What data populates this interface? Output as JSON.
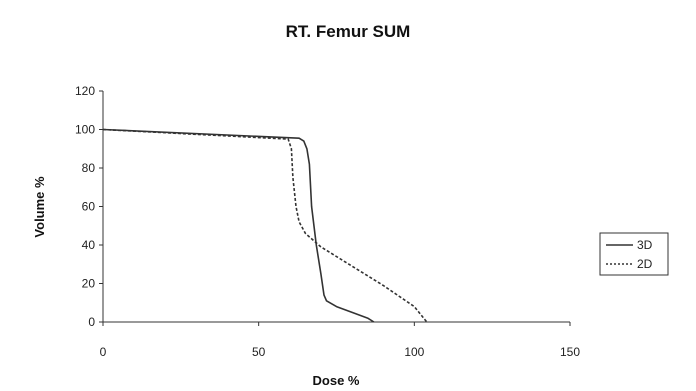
{
  "chart_data": {
    "type": "line",
    "title": "RT. Femur SUM",
    "xlabel": "Dose %",
    "ylabel": "Volume %",
    "xlim": [
      0,
      150
    ],
    "ylim": [
      0,
      120
    ],
    "xticks": [
      0,
      50,
      100,
      150
    ],
    "yticks": [
      0,
      20,
      40,
      60,
      80,
      100,
      120
    ],
    "grid": false,
    "legend_position": "right",
    "series": [
      {
        "name": "3D",
        "style": "solid",
        "color": "#333333",
        "points": [
          [
            0,
            100
          ],
          [
            63,
            95.5
          ],
          [
            64.5,
            94
          ],
          [
            65.5,
            90
          ],
          [
            66.3,
            82
          ],
          [
            67,
            60
          ],
          [
            68.5,
            40
          ],
          [
            70,
            25
          ],
          [
            71,
            14
          ],
          [
            71.8,
            11
          ],
          [
            75,
            8
          ],
          [
            80,
            5
          ],
          [
            85,
            2
          ],
          [
            87,
            0
          ]
        ]
      },
      {
        "name": "2D",
        "style": "dashed",
        "color": "#333333",
        "points": [
          [
            0,
            100
          ],
          [
            59.5,
            95
          ],
          [
            60.5,
            90
          ],
          [
            61,
            75
          ],
          [
            62,
            60
          ],
          [
            63,
            52
          ],
          [
            65,
            46
          ],
          [
            70,
            39
          ],
          [
            80,
            29
          ],
          [
            90,
            19
          ],
          [
            100,
            8
          ],
          [
            104,
            0
          ]
        ]
      }
    ]
  }
}
